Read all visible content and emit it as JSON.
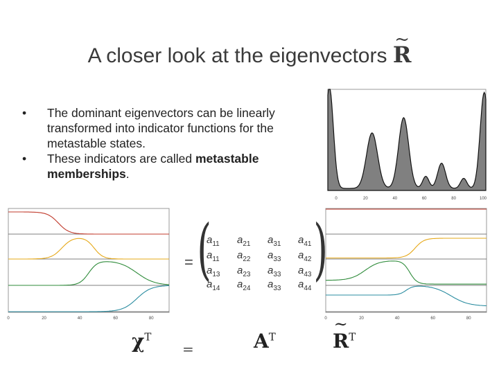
{
  "title": {
    "text": "A closer look at the eigenvectors",
    "symbol": "R",
    "tilde": "~"
  },
  "bullets": [
    {
      "text": "The dominant eigenvectors can be linearly transformed into indicator functions for the metastable states."
    },
    {
      "prefix": "These indicators are called ",
      "bold": "metastable memberships",
      "suffix": "."
    }
  ],
  "matrix": {
    "rows": [
      [
        [
          "a",
          "11"
        ],
        [
          "a",
          "21"
        ],
        [
          "a",
          "31"
        ],
        [
          "a",
          "41"
        ]
      ],
      [
        [
          "a",
          "11"
        ],
        [
          "a",
          "22"
        ],
        [
          "a",
          "33"
        ],
        [
          "a",
          "42"
        ]
      ],
      [
        [
          "a",
          "13"
        ],
        [
          "a",
          "23"
        ],
        [
          "a",
          "33"
        ],
        [
          "a",
          "43"
        ]
      ],
      [
        [
          "a",
          "14"
        ],
        [
          "a",
          "24"
        ],
        [
          "a",
          "33"
        ],
        [
          "a",
          "44"
        ]
      ]
    ],
    "equals": "="
  },
  "bottom": {
    "chi": "χ",
    "equals": "=",
    "a": "A",
    "r": "R",
    "transpose": "T"
  },
  "chart_data": [
    {
      "type": "area",
      "x_ticks": [
        "0",
        "20",
        "40",
        "60",
        "80",
        "100"
      ],
      "xlim": [
        0,
        100
      ],
      "color": "#808080"
    },
    {
      "type": "line",
      "x_ticks": [
        "0",
        "20",
        "40",
        "60",
        "80"
      ],
      "series_colors": [
        "#c0392b",
        "#e6a817",
        "#2e8b3a",
        "#2a8ca0"
      ]
    },
    {
      "type": "line",
      "x_ticks": [
        "0",
        "20",
        "40",
        "60",
        "80"
      ],
      "series_colors": [
        "#c0392b",
        "#e6a817",
        "#2e8b3a",
        "#2a8ca0"
      ]
    }
  ]
}
